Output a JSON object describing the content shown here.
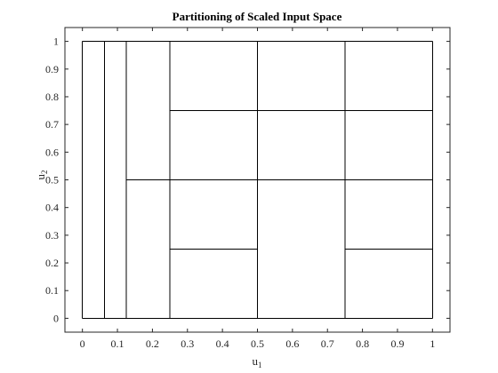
{
  "chart_data": {
    "type": "partition",
    "title": "Partitioning of Scaled Input Space",
    "xlabel": {
      "base": "u",
      "sub": "1"
    },
    "ylabel": {
      "base": "u",
      "sub": "2"
    },
    "xlim": [
      -0.05,
      1.05
    ],
    "ylim": [
      -0.05,
      1.05
    ],
    "xticks": [
      0,
      0.1,
      0.2,
      0.3,
      0.4,
      0.5,
      0.6,
      0.7,
      0.8,
      0.9,
      1
    ],
    "xtick_labels": [
      "0",
      "0.1",
      "0.2",
      "0.3",
      "0.4",
      "0.5",
      "0.6",
      "0.7",
      "0.8",
      "0.9",
      "1"
    ],
    "yticks": [
      0,
      0.1,
      0.2,
      0.3,
      0.4,
      0.5,
      0.6,
      0.7,
      0.8,
      0.9,
      1
    ],
    "ytick_labels": [
      "0",
      "0.1",
      "0.2",
      "0.3",
      "0.4",
      "0.5",
      "0.6",
      "0.7",
      "0.8",
      "0.9",
      "1"
    ],
    "grid": false,
    "line_color": "#000000",
    "partition_lines": [
      {
        "x1": 0,
        "y1": 0,
        "x2": 1,
        "y2": 0
      },
      {
        "x1": 0,
        "y1": 1,
        "x2": 1,
        "y2": 1
      },
      {
        "x1": 0,
        "y1": 0,
        "x2": 0,
        "y2": 1
      },
      {
        "x1": 1,
        "y1": 0,
        "x2": 1,
        "y2": 1
      },
      {
        "x1": 0.0625,
        "y1": 0,
        "x2": 0.0625,
        "y2": 1
      },
      {
        "x1": 0.125,
        "y1": 0,
        "x2": 0.125,
        "y2": 1
      },
      {
        "x1": 0.25,
        "y1": 0,
        "x2": 0.25,
        "y2": 1
      },
      {
        "x1": 0.5,
        "y1": 0,
        "x2": 0.5,
        "y2": 1
      },
      {
        "x1": 0.75,
        "y1": 0,
        "x2": 0.75,
        "y2": 1
      },
      {
        "x1": 0.125,
        "y1": 0.5,
        "x2": 1,
        "y2": 0.5
      },
      {
        "x1": 0.25,
        "y1": 0.75,
        "x2": 1,
        "y2": 0.75
      },
      {
        "x1": 0.25,
        "y1": 0.25,
        "x2": 0.5,
        "y2": 0.25
      },
      {
        "x1": 0.75,
        "y1": 0.25,
        "x2": 1,
        "y2": 0.25
      }
    ]
  }
}
